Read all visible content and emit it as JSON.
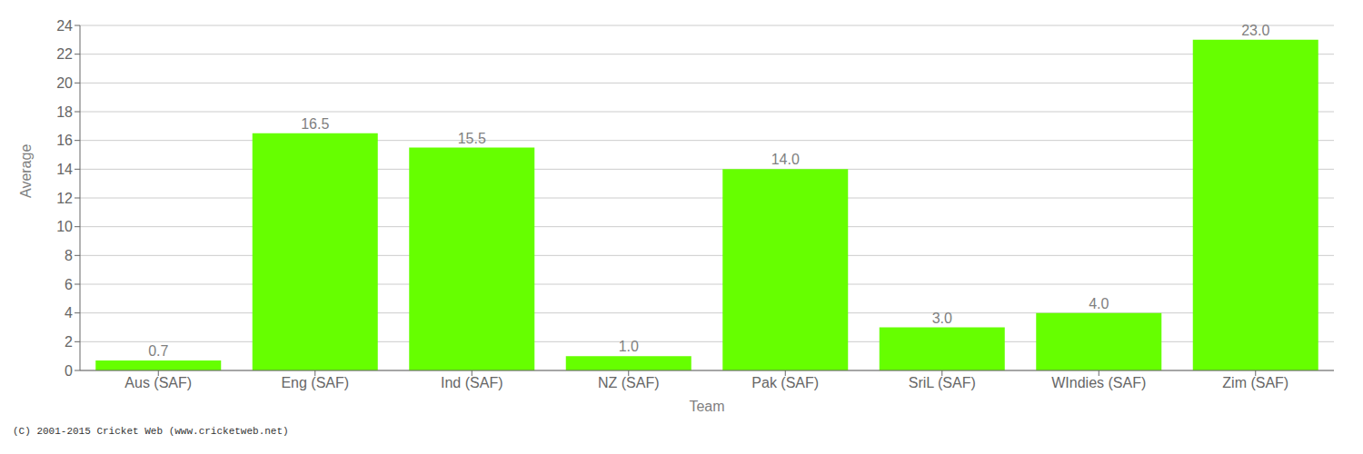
{
  "chart_data": {
    "type": "bar",
    "categories": [
      "Aus (SAF)",
      "Eng (SAF)",
      "Ind (SAF)",
      "NZ (SAF)",
      "Pak (SAF)",
      "SriL (SAF)",
      "WIndies (SAF)",
      "Zim (SAF)"
    ],
    "values": [
      0.7,
      16.5,
      15.5,
      1.0,
      14.0,
      3.0,
      4.0,
      23.0
    ],
    "value_labels": [
      "0.7",
      "16.5",
      "15.5",
      "1.0",
      "14.0",
      "3.0",
      "4.0",
      "23.0"
    ],
    "data_labels": true,
    "color": "#66ff00",
    "xlabel": "Team",
    "ylabel": "Average",
    "ylim": [
      0,
      24
    ],
    "yticks": [
      0,
      2,
      4,
      6,
      8,
      10,
      12,
      14,
      16,
      18,
      20,
      22,
      24
    ],
    "grid": true,
    "annotations": [
      "(C) 2001-2015 Cricket Web (www.cricketweb.net)"
    ]
  }
}
